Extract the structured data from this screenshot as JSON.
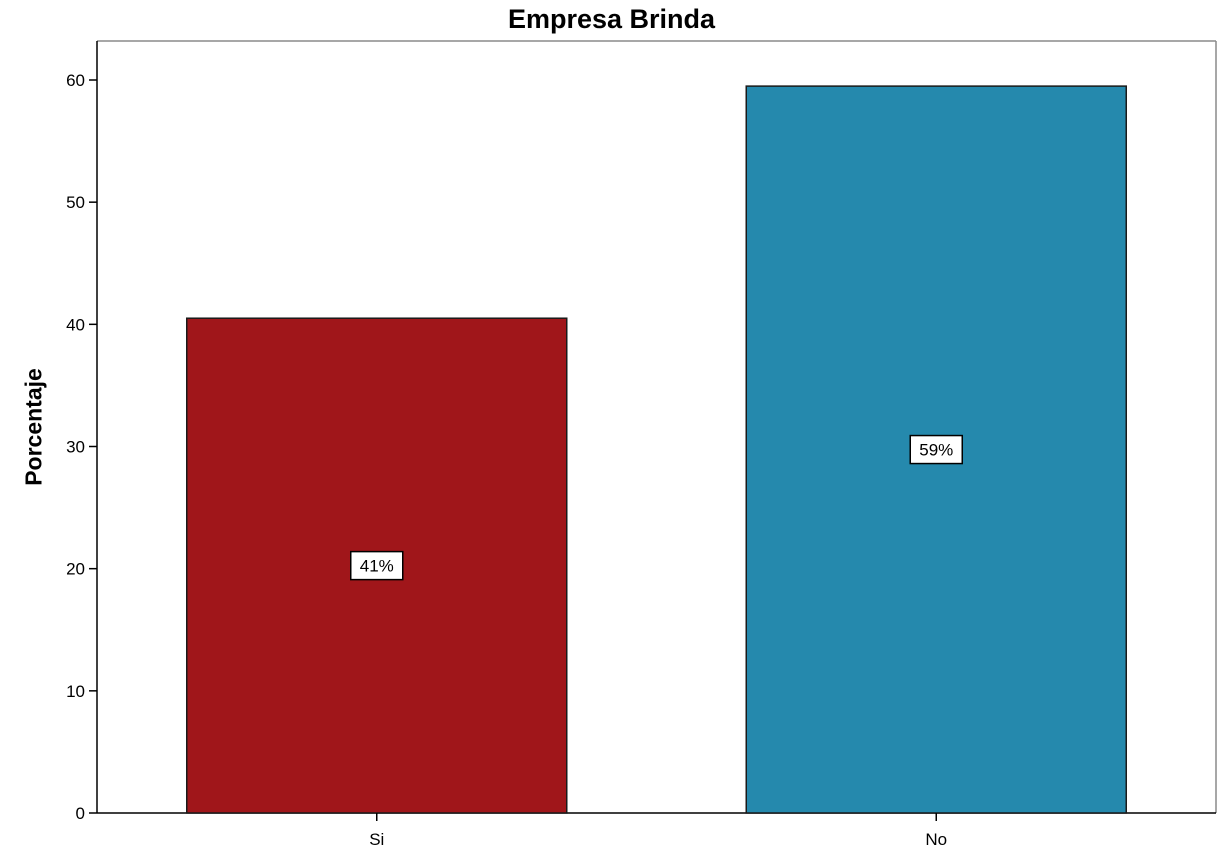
{
  "chart_data": {
    "type": "bar",
    "title": "Empresa Brinda",
    "xlabel": "",
    "ylabel": "Porcentaje",
    "categories": [
      "Si",
      "No"
    ],
    "values": [
      40.5,
      59.5
    ],
    "data_labels": [
      "41%",
      "59%"
    ],
    "colors": [
      "#a0161a",
      "#2589ad"
    ],
    "ylim": [
      0,
      63
    ],
    "yticks": [
      0,
      10,
      20,
      30,
      40,
      50,
      60
    ],
    "grid": false,
    "legend": "none"
  }
}
